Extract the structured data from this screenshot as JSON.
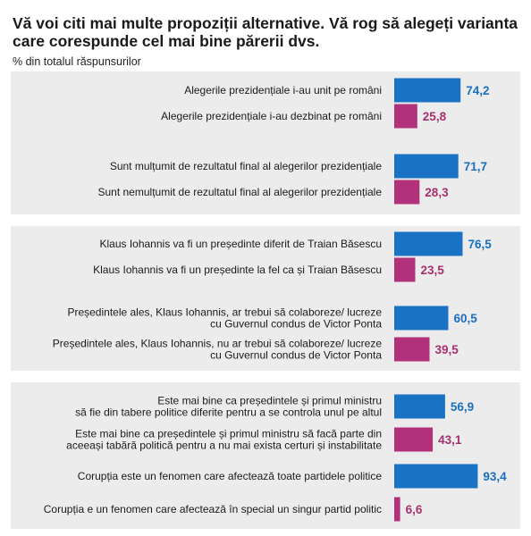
{
  "header": {
    "title": "Vă voi citi mai multe propoziții alternative. Vă rog să alegeți varianta care corespunde cel mai bine părerii dvs.",
    "subtitle": "% din totalul răspunsurilor"
  },
  "colors": {
    "blue": "#1a72c4",
    "magenta": "#b1327a",
    "blue_text": "#1a6fc0",
    "magenta_text": "#a8306f",
    "panel": "#ececec"
  },
  "chart_data": {
    "type": "bar",
    "orientation": "horizontal",
    "unit": "%",
    "xlim": [
      0,
      100
    ],
    "grid": false,
    "legend": "none",
    "groups": [
      {
        "items": [
          {
            "label": [
              "Alegerile prezidențiale i-au unit pe români"
            ],
            "value": 74.2,
            "display": "74,2",
            "color": "blue"
          },
          {
            "label": [
              "Alegerile prezidențiale i-au dezbinat pe români"
            ],
            "value": 25.8,
            "display": "25,8",
            "color": "magenta"
          },
          {
            "label": [
              "Sunt mulțumit de rezultatul final al alegerilor prezidențiale"
            ],
            "value": 71.7,
            "display": "71,7",
            "color": "blue"
          },
          {
            "label": [
              "Sunt nemulțumit de rezultatul final al alegerilor prezidențiale"
            ],
            "value": 28.3,
            "display": "28,3",
            "color": "magenta"
          }
        ]
      },
      {
        "items": [
          {
            "label": [
              "Klaus Iohannis va fi un președinte diferit de Traian Băsescu"
            ],
            "value": 76.5,
            "display": "76,5",
            "color": "blue"
          },
          {
            "label": [
              "Klaus Iohannis va fi un președinte la fel ca și Traian Băsescu"
            ],
            "value": 23.5,
            "display": "23,5",
            "color": "magenta"
          },
          {
            "label": [
              "Președintele ales, Klaus Iohannis, ar trebui să colaboreze/ lucreze",
              "cu Guvernul condus de Victor Ponta"
            ],
            "value": 60.5,
            "display": "60,5",
            "color": "blue"
          },
          {
            "label": [
              "Președintele ales, Klaus Iohannis, nu ar trebui să colaboreze/ lucreze",
              "cu Guvernul condus de Victor Ponta"
            ],
            "value": 39.5,
            "display": "39,5",
            "color": "magenta"
          }
        ]
      },
      {
        "items": [
          {
            "label": [
              "Este mai bine ca președintele și primul ministru",
              "să fie din tabere politice diferite pentru a se controla unul pe altul"
            ],
            "value": 56.9,
            "display": "56,9",
            "color": "blue"
          },
          {
            "label": [
              "Este mai bine ca președintele și primul ministru să facă parte din",
              "aceeași tabără politică pentru a nu mai exista certuri și instabilitate"
            ],
            "value": 43.1,
            "display": "43,1",
            "color": "magenta"
          },
          {
            "label": [
              "Corupția este un fenomen care afectează toate partidele politice"
            ],
            "value": 93.4,
            "display": "93,4",
            "color": "blue"
          },
          {
            "label": [
              "Corupția e un fenomen care afectează în special un singur partid politic"
            ],
            "value": 6.6,
            "display": "6,6",
            "color": "magenta"
          }
        ]
      }
    ]
  }
}
